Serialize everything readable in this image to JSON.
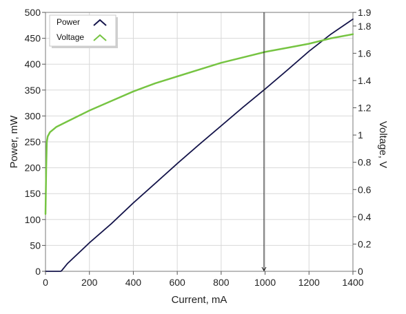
{
  "chart_data": {
    "type": "line",
    "xlabel": "Current, mA",
    "ylabel": "Power, mW",
    "y2label": "Voltage, V",
    "xlim": [
      0,
      1400
    ],
    "ylim": [
      0,
      500
    ],
    "y2lim": [
      0,
      1.9
    ],
    "x_ticks": [
      0,
      200,
      400,
      600,
      800,
      1000,
      1200,
      1400
    ],
    "y_ticks": [
      0,
      50,
      100,
      150,
      200,
      250,
      300,
      350,
      400,
      450,
      500
    ],
    "y2_ticks": [
      0,
      0.2,
      0.4,
      0.6,
      0.8,
      1,
      1.2,
      1.4,
      1.6,
      1.8,
      1.9
    ],
    "y2_tick_labels": [
      "0",
      "0.2",
      "0.4",
      "0.6",
      "0.8",
      "1",
      "1.2",
      "1.4",
      "1.6",
      "1.8",
      "1.9"
    ],
    "grid": true,
    "legend_position": "top-left",
    "cursor_x": 995,
    "series": [
      {
        "name": "Power",
        "axis": "left",
        "color": "#14144a",
        "x": [
          0,
          70,
          75,
          100,
          200,
          300,
          400,
          500,
          600,
          700,
          800,
          900,
          1000,
          1100,
          1200,
          1300,
          1400
        ],
        "y": [
          0,
          0,
          2,
          15,
          55,
          92,
          132,
          170,
          208,
          245,
          281,
          317,
          352,
          388,
          425,
          458,
          487
        ]
      },
      {
        "name": "Voltage",
        "axis": "right",
        "color": "#76c442",
        "x": [
          0,
          3,
          6,
          10,
          20,
          50,
          100,
          200,
          300,
          400,
          500,
          600,
          700,
          800,
          900,
          1000,
          1100,
          1200,
          1300,
          1400
        ],
        "y": [
          0.42,
          0.75,
          0.95,
          0.99,
          1.02,
          1.06,
          1.1,
          1.18,
          1.25,
          1.32,
          1.38,
          1.43,
          1.48,
          1.53,
          1.57,
          1.61,
          1.64,
          1.67,
          1.71,
          1.74
        ]
      }
    ]
  }
}
